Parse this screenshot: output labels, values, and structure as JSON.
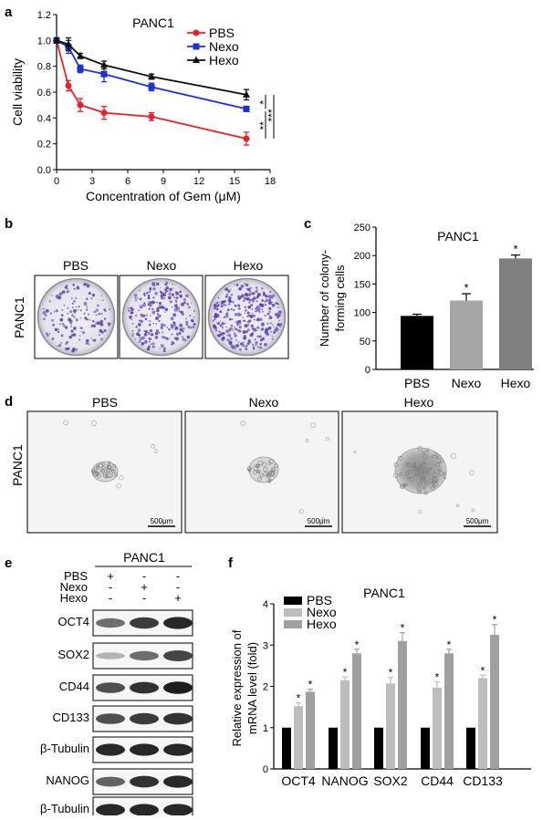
{
  "panels": {
    "a": {
      "letter": "a"
    },
    "b": {
      "letter": "b",
      "side_label": "PANC1",
      "col_labels": [
        "PBS",
        "Nexo",
        "Hexo"
      ]
    },
    "c": {
      "letter": "c"
    },
    "d": {
      "letter": "d",
      "side_label": "PANC1",
      "col_labels": [
        "PBS",
        "Nexo",
        "Hexo"
      ],
      "scale_bar": "500μm"
    },
    "e": {
      "letter": "e",
      "header": "PANC1",
      "treatments": [
        {
          "name": "PBS",
          "marks": [
            "+",
            "-",
            "-"
          ]
        },
        {
          "name": "Nexo",
          "marks": [
            "-",
            "+",
            "-"
          ]
        },
        {
          "name": "Hexo",
          "marks": [
            "-",
            "-",
            "+"
          ]
        }
      ],
      "blots": [
        {
          "name": "OCT4",
          "intensity": [
            0.55,
            0.8,
            0.9
          ]
        },
        {
          "name": "SOX2",
          "intensity": [
            0.2,
            0.55,
            0.75
          ]
        },
        {
          "name": "CD44",
          "intensity": [
            0.7,
            0.85,
            0.95
          ]
        },
        {
          "name": "CD133",
          "intensity": [
            0.7,
            0.8,
            0.85
          ]
        },
        {
          "name": "β-Tubulin",
          "intensity": [
            0.9,
            0.9,
            0.9
          ]
        },
        {
          "name": "NANOG",
          "intensity": [
            0.6,
            0.85,
            0.9
          ]
        },
        {
          "name": "β-Tubulin",
          "intensity": [
            0.9,
            0.9,
            0.9
          ]
        }
      ]
    },
    "f": {
      "letter": "f"
    }
  },
  "chart_data": [
    {
      "id": "a",
      "type": "line",
      "title": "PANC1",
      "xlabel": "Concentration of Gem (μM)",
      "ylabel": "Cell viability",
      "xlim": [
        0,
        18
      ],
      "ylim": [
        0,
        1.2
      ],
      "xticks": [
        "0",
        "3",
        "6",
        "9",
        "12",
        "15",
        "18"
      ],
      "yticks": [
        "0.0",
        "0.2",
        "0.4",
        "0.6",
        "0.8",
        "1.0",
        "1.2"
      ],
      "legend": "top-center",
      "x": [
        0,
        1,
        2,
        4,
        8,
        16
      ],
      "series": [
        {
          "name": "PBS",
          "color": "#e8202a",
          "marker": "circle",
          "values": [
            1.0,
            0.65,
            0.5,
            0.44,
            0.41,
            0.24
          ],
          "errors": [
            0.02,
            0.04,
            0.05,
            0.05,
            0.03,
            0.05
          ]
        },
        {
          "name": "Nexo",
          "color": "#1f2fd6",
          "marker": "square",
          "values": [
            1.0,
            0.95,
            0.78,
            0.74,
            0.64,
            0.47
          ],
          "errors": [
            0.02,
            0.05,
            0.03,
            0.06,
            0.03,
            0.02
          ]
        },
        {
          "name": "Hexo",
          "color": "#111111",
          "marker": "triangle",
          "values": [
            1.0,
            0.97,
            0.88,
            0.81,
            0.72,
            0.58
          ],
          "errors": [
            0.02,
            0.05,
            0.02,
            0.03,
            0.02,
            0.04
          ]
        }
      ],
      "significance": [
        "*",
        "**",
        "***"
      ]
    },
    {
      "id": "c",
      "type": "bar",
      "title": "PANC1",
      "ylabel": "Number of colony-forming cells",
      "ylabel_lines": [
        "Number of colony-",
        "forming cells"
      ],
      "ylim": [
        0,
        250
      ],
      "yticks": [
        "0",
        "50",
        "100",
        "150",
        "200",
        "250"
      ],
      "categories": [
        "PBS",
        "Nexo",
        "Hexo"
      ],
      "values": [
        94,
        121,
        195
      ],
      "errors": [
        3,
        12,
        6
      ],
      "colors": [
        "#000000",
        "#a6a6a6",
        "#808080"
      ],
      "annotations": [
        "",
        "*",
        "*"
      ]
    },
    {
      "id": "f",
      "type": "bar",
      "title": "PANC1",
      "ylabel": "Relative expression of mRNA level (fold)",
      "ylabel_lines": [
        "Relative expression of",
        "mRNA level (fold)"
      ],
      "ylim": [
        0,
        4
      ],
      "yticks": [
        "0",
        "1",
        "2",
        "3",
        "4"
      ],
      "legend": "top-left",
      "categories": [
        "OCT4",
        "NANOG",
        "SOX2",
        "CD44",
        "CD133"
      ],
      "series": [
        {
          "name": "PBS",
          "color": "#000000",
          "values": [
            1,
            1,
            1,
            1,
            1
          ],
          "errors": [
            0,
            0,
            0,
            0,
            0
          ]
        },
        {
          "name": "Nexo",
          "color": "#bdbdbd",
          "values": [
            1.52,
            2.15,
            2.07,
            1.97,
            2.2
          ],
          "errors": [
            0.08,
            0.08,
            0.15,
            0.14,
            0.07
          ]
        },
        {
          "name": "Hexo",
          "color": "#a0a0a0",
          "values": [
            1.87,
            2.8,
            3.1,
            2.8,
            3.25
          ],
          "errors": [
            0.06,
            0.1,
            0.2,
            0.1,
            0.25
          ]
        }
      ],
      "annotation": "*"
    }
  ]
}
